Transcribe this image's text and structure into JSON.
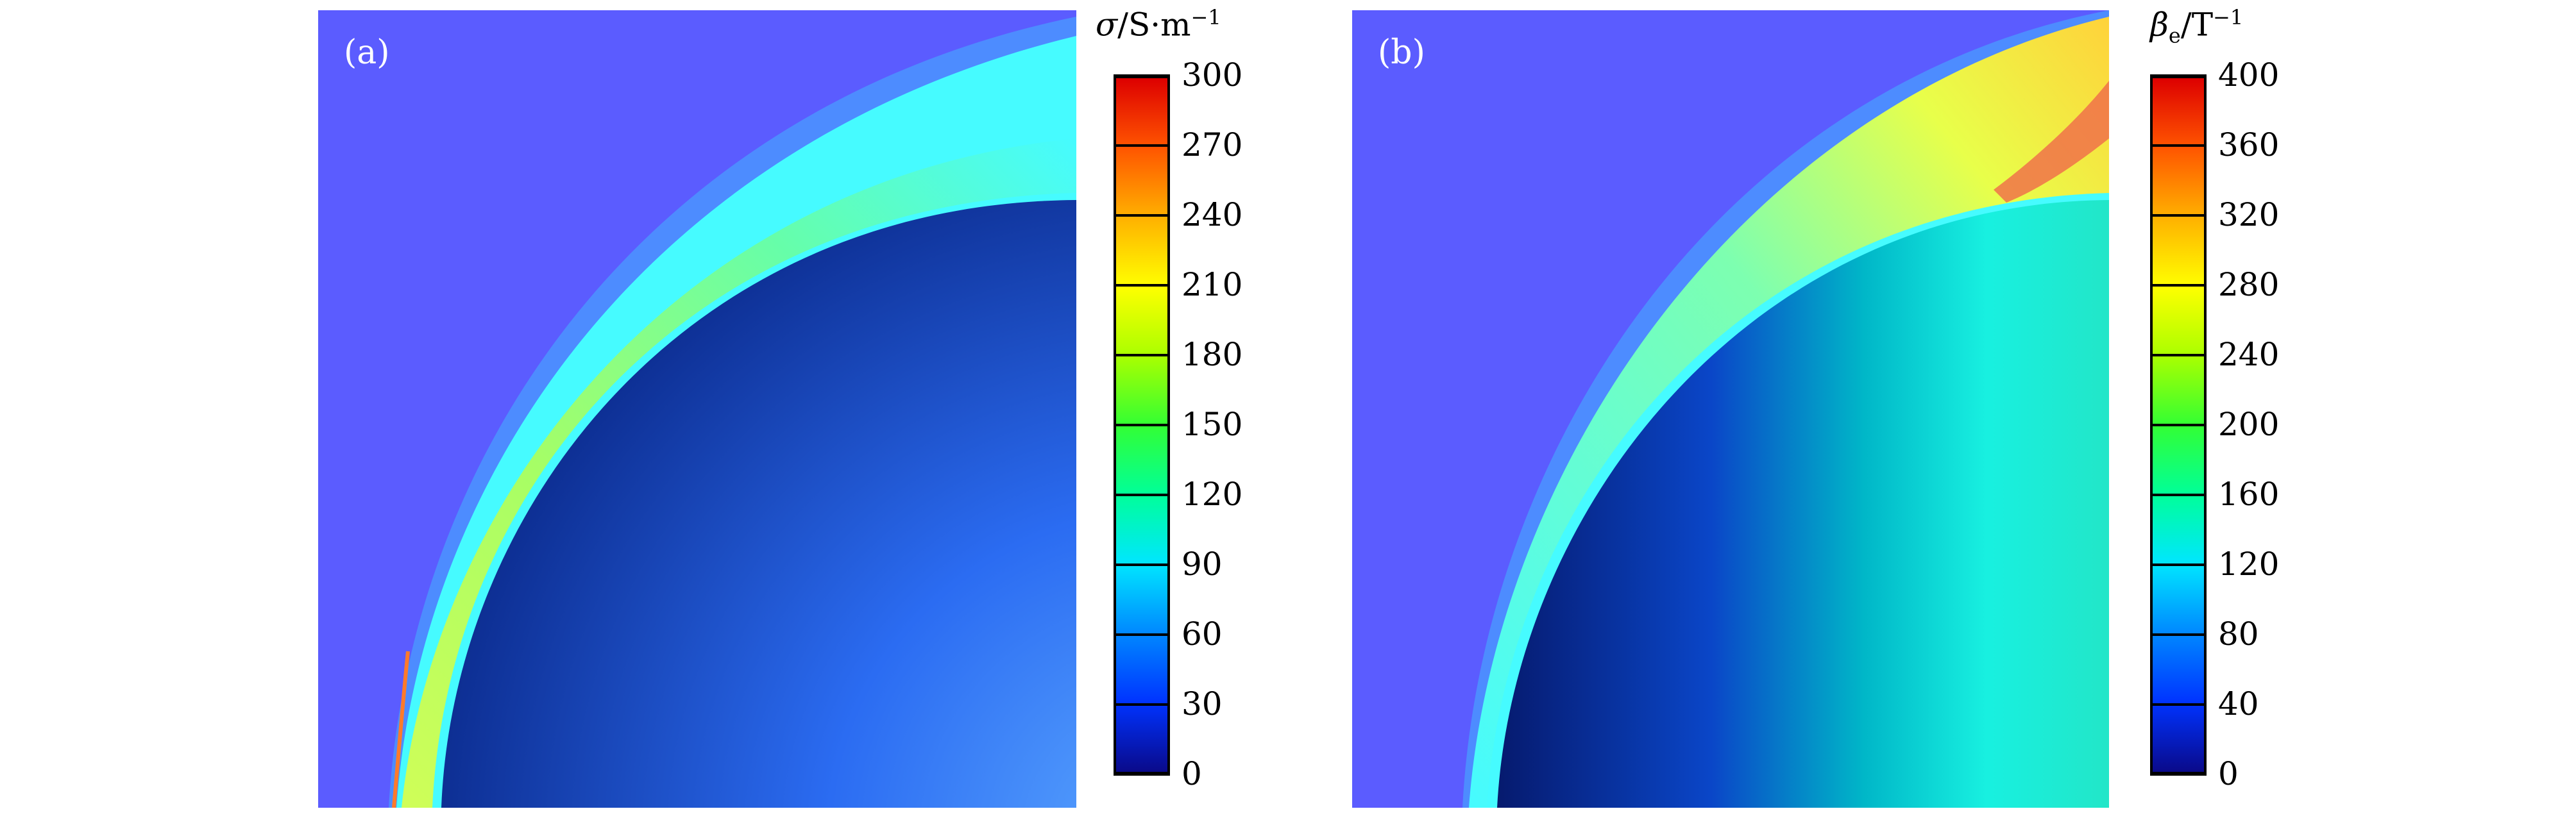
{
  "chart_data": [
    {
      "type": "heatmap",
      "panel_label": "(a)",
      "colorbar": {
        "symbol": "σ",
        "unit_text": "/S·m",
        "unit_exponent": "−1",
        "ticks": [
          "0",
          "30",
          "60",
          "90",
          "120",
          "150",
          "180",
          "210",
          "240",
          "270",
          "300"
        ],
        "range": [
          0,
          300
        ]
      }
    },
    {
      "type": "heatmap",
      "panel_label": "(b)",
      "colorbar": {
        "symbol": "β",
        "symbol_sub": "e",
        "unit_text": "/T",
        "unit_exponent": "−1",
        "ticks": [
          "0",
          "40",
          "80",
          "120",
          "160",
          "200",
          "240",
          "280",
          "320",
          "360",
          "400"
        ],
        "range": [
          0,
          400
        ]
      }
    }
  ],
  "colors": {
    "freestream": "#5b5cff",
    "shock_cyan": "#46fbff",
    "body_dark": "#0a1f7c",
    "body_light": "#3a7dff",
    "colormap": [
      "#0a0a8a",
      "#0033ff",
      "#0088ff",
      "#00e6ff",
      "#00ff99",
      "#33ff33",
      "#aaff00",
      "#ffff00",
      "#ffb000",
      "#ff5500",
      "#dd0000"
    ]
  }
}
